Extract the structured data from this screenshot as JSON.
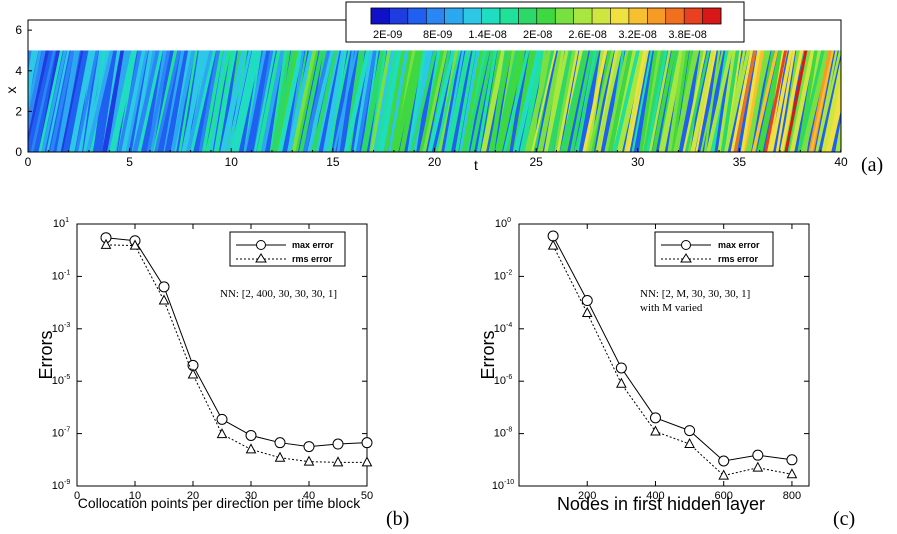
{
  "chart_data": [
    {
      "type": "heatmap",
      "panel_label": "(a)",
      "xlabel": "t",
      "ylabel": "x",
      "xlim": [
        0,
        40
      ],
      "ylim": [
        0,
        6.5
      ],
      "field_ylim": [
        0,
        5
      ],
      "xticks": [
        "0",
        "5",
        "10",
        "15",
        "20",
        "25",
        "30",
        "35",
        "40"
      ],
      "yticks": [
        "0",
        "2",
        "4",
        "6"
      ],
      "colorbar": {
        "min": 0,
        "max": 4.2e-08,
        "labels": [
          "2E-09",
          "8E-09",
          "1.4E-08",
          "2E-08",
          "2.6E-08",
          "3.2E-08",
          "3.8E-08"
        ],
        "colors": [
          "#1010c8",
          "#1e3ce0",
          "#2060f0",
          "#2a86f4",
          "#2ca8f0",
          "#2cc8e6",
          "#20dcc0",
          "#20e09a",
          "#2ed868",
          "#40d840",
          "#78e040",
          "#a8e640",
          "#d0e640",
          "#f0e040",
          "#f8c030",
          "#f89a26",
          "#f07020",
          "#e84020",
          "#d81818"
        ]
      }
    },
    {
      "type": "line",
      "panel_label": "(b)",
      "xlabel": "Collocation points per direction per time block",
      "ylabel": "Errors",
      "xlim": [
        0,
        50
      ],
      "yscale": "log",
      "ylim": [
        1e-09,
        10
      ],
      "xticks": [
        "0",
        "10",
        "20",
        "30",
        "40",
        "50"
      ],
      "yticks": [
        {
          "base": "10",
          "exp": "1"
        },
        {
          "base": "10",
          "exp": "-1"
        },
        {
          "base": "10",
          "exp": "-3"
        },
        {
          "base": "10",
          "exp": "-5"
        },
        {
          "base": "10",
          "exp": "-7"
        },
        {
          "base": "10",
          "exp": "-9"
        }
      ],
      "annotation": "NN: [2, 400, 30, 30, 30, 1]",
      "x": [
        5,
        10,
        15,
        20,
        25,
        30,
        35,
        40,
        45,
        50
      ],
      "series": [
        {
          "name": "max error",
          "marker": "circle",
          "style": "solid",
          "values": [
            3.0,
            2.3,
            0.04,
            4e-05,
            3.5e-07,
            8.5e-08,
            4.5e-08,
            3.2e-08,
            4e-08,
            4.5e-08
          ]
        },
        {
          "name": "rms error",
          "marker": "triangle",
          "style": "dotted",
          "values": [
            1.6,
            1.5,
            0.012,
            1.8e-05,
            9.5e-08,
            2.5e-08,
            1.2e-08,
            8.5e-09,
            8e-09,
            8e-09
          ]
        }
      ]
    },
    {
      "type": "line",
      "panel_label": "(c)",
      "xlabel": "Nodes in first hidden layer",
      "ylabel": "Errors",
      "xlim": [
        0,
        850
      ],
      "yscale": "log",
      "ylim": [
        1e-10,
        1
      ],
      "xticks": [
        "200",
        "400",
        "600",
        "800"
      ],
      "yticks": [
        {
          "base": "10",
          "exp": "0"
        },
        {
          "base": "10",
          "exp": "-2"
        },
        {
          "base": "10",
          "exp": "-4"
        },
        {
          "base": "10",
          "exp": "-6"
        },
        {
          "base": "10",
          "exp": "-8"
        },
        {
          "base": "10",
          "exp": "-10"
        }
      ],
      "annotation_lines": [
        "NN: [2, M, 30, 30, 30, 1]",
        "with M varied"
      ],
      "x": [
        100,
        200,
        300,
        400,
        500,
        600,
        700,
        800
      ],
      "series": [
        {
          "name": "max error",
          "marker": "circle",
          "style": "solid",
          "values": [
            0.35,
            0.0012,
            3.2e-06,
            4e-08,
            1.3e-08,
            9e-10,
            1.5e-09,
            1e-09
          ]
        },
        {
          "name": "rms error",
          "marker": "triangle",
          "style": "dotted",
          "values": [
            0.15,
            0.0004,
            8e-07,
            1.2e-08,
            4e-09,
            2.5e-10,
            5e-10,
            2.8e-10
          ]
        }
      ]
    }
  ]
}
